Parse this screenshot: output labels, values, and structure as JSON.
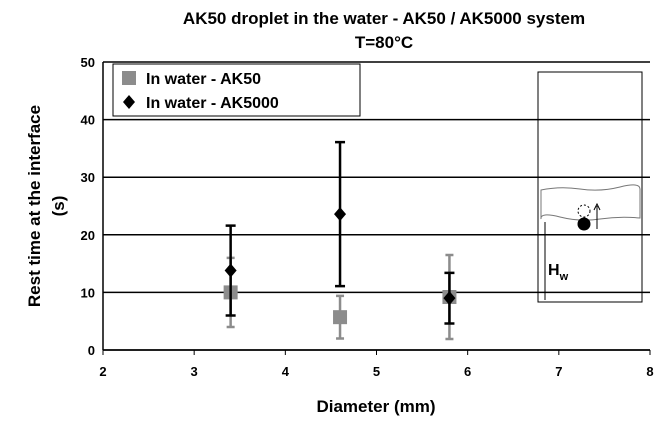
{
  "chart_data": {
    "type": "scatter",
    "title": "AK50 droplet in the water - AK50 / AK5000 system",
    "subtitle": "T=80°C",
    "xlabel": "Diameter (mm)",
    "ylabel": [
      "Rest time at the interface",
      "(s)"
    ],
    "xlim": [
      2,
      8
    ],
    "xticks": [
      2,
      3,
      4,
      5,
      6,
      7,
      8
    ],
    "ylim": [
      0,
      50
    ],
    "yticks": [
      0,
      10,
      20,
      30,
      40,
      50
    ],
    "grid": true,
    "legend": "upper left",
    "series": [
      {
        "name": "In water - AK50",
        "color": "#8c8c8c",
        "marker": "square",
        "x": [
          3.4,
          4.6,
          5.8
        ],
        "values": [
          10,
          5.7,
          9.2
        ],
        "errors": [
          6,
          3.7,
          7.3
        ]
      },
      {
        "name": "In water - AK5000",
        "color": "#000000",
        "marker": "diamond",
        "x": [
          3.4,
          4.6,
          5.8
        ],
        "values": [
          13.8,
          23.6,
          9
        ],
        "errors": [
          7.8,
          12.5,
          4.4
        ]
      }
    ],
    "annotation": "H",
    "annotation_subscript": "w"
  }
}
